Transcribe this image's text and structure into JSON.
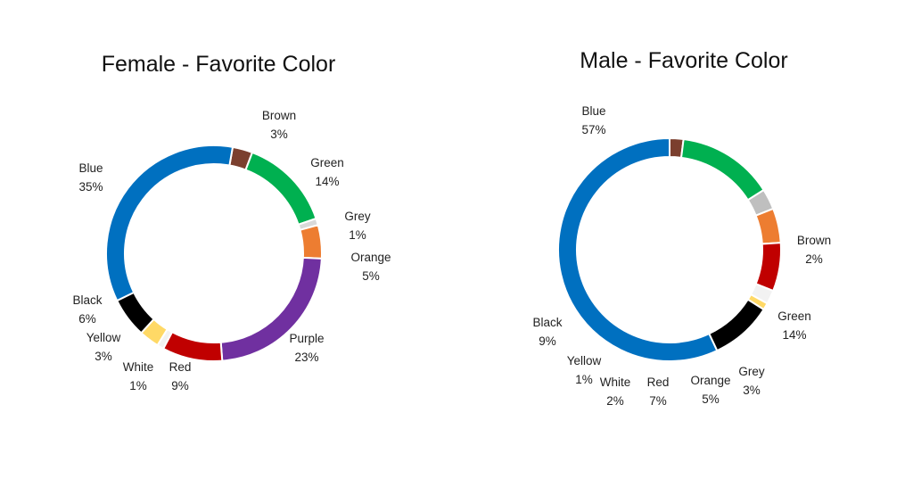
{
  "chart_data": [
    {
      "type": "pie",
      "title": "Female - Favorite Color",
      "categories": [
        "Brown",
        "Green",
        "Grey",
        "Orange",
        "Purple",
        "Red",
        "White",
        "Yellow",
        "Black",
        "Blue"
      ],
      "values": [
        3,
        14,
        1,
        5,
        23,
        9,
        1,
        3,
        6,
        35
      ],
      "value_labels": [
        "3%",
        "14%",
        "1%",
        "5%",
        "23%",
        "9%",
        "1%",
        "3%",
        "6%",
        "35%"
      ],
      "colors": [
        "#7B3F2E",
        "#00B050",
        "#D9D9D9",
        "#ED7D31",
        "#7030A0",
        "#C00000",
        "#F2F2F2",
        "#FFD966",
        "#000000",
        "#0070C0"
      ],
      "legend": "none"
    },
    {
      "type": "pie",
      "title": "Male - Favorite Color",
      "categories": [
        "Brown",
        "Green",
        "Grey",
        "Orange",
        "Red",
        "White",
        "Yellow",
        "Black",
        "Blue"
      ],
      "values": [
        2,
        14,
        3,
        5,
        7,
        2,
        1,
        9,
        57
      ],
      "value_labels": [
        "2%",
        "14%",
        "3%",
        "5%",
        "7%",
        "2%",
        "1%",
        "9%",
        "57%"
      ],
      "colors": [
        "#7B3F2E",
        "#00B050",
        "#BFBFBF",
        "#ED7D31",
        "#C00000",
        "#F2F2F2",
        "#FFD966",
        "#000000",
        "#0070C0"
      ],
      "legend": "none"
    }
  ]
}
